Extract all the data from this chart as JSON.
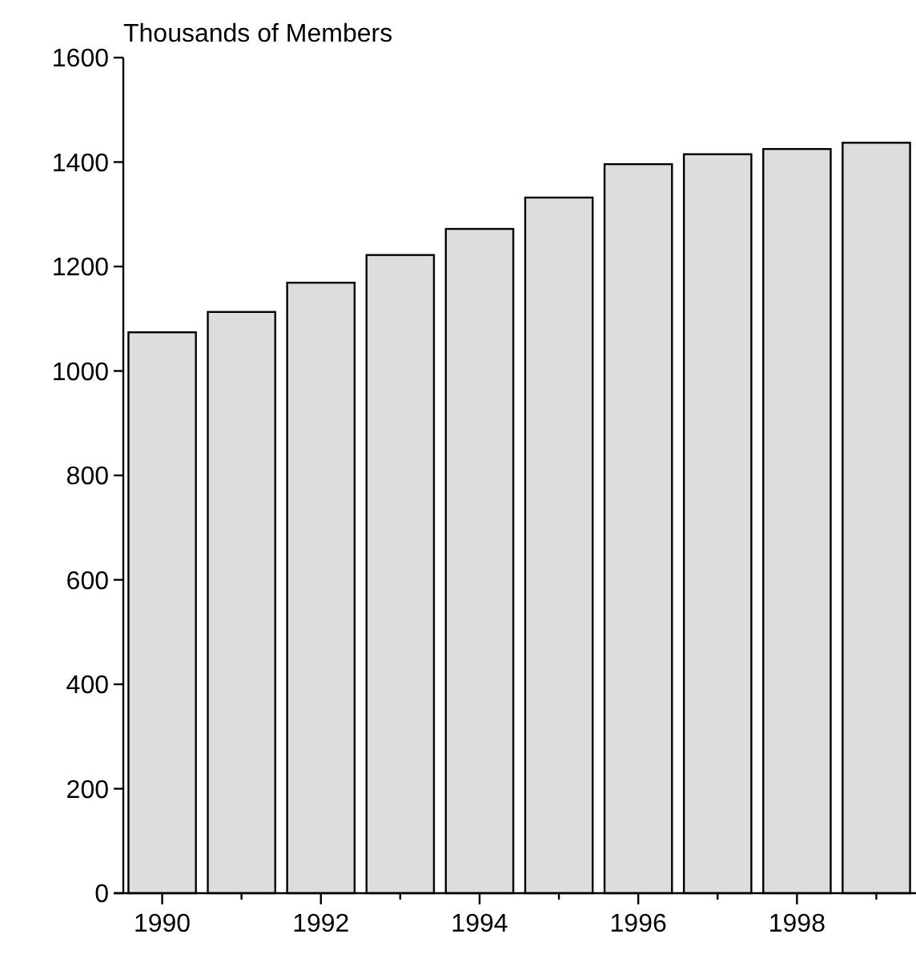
{
  "chart_data": {
    "type": "bar",
    "ylabel": "Thousands of Members",
    "categories": [
      "1990",
      null,
      "1992",
      null,
      "1994",
      null,
      "1996",
      null,
      "1998",
      null
    ],
    "values": [
      1074,
      1113,
      1169,
      1222,
      1272,
      1332,
      1396,
      1415,
      1425,
      1437
    ],
    "color": "#dddddd",
    "ylim": [
      0,
      1600
    ],
    "yticks": [
      0,
      200,
      400,
      600,
      800,
      1000,
      1200,
      1400,
      1600
    ],
    "grid": false
  }
}
